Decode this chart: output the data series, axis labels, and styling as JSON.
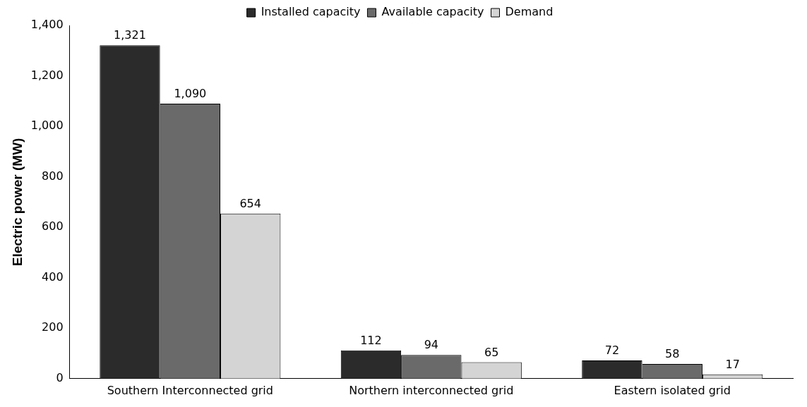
{
  "chart_data": {
    "type": "bar",
    "ylabel": "Electric power (MW)",
    "categories": [
      "Southern Interconnected grid",
      "Northern interconnected grid",
      "Eastern isolated grid"
    ],
    "series": [
      {
        "name": "Installed capacity",
        "color": "#2b2b2b",
        "values": [
          1321,
          112,
          72
        ],
        "value_labels": [
          "1,321",
          "112",
          "72"
        ]
      },
      {
        "name": "Available capacity",
        "color": "#6a6a6a",
        "values": [
          1090,
          94,
          58
        ],
        "value_labels": [
          "1,090",
          "94",
          "58"
        ]
      },
      {
        "name": "Demand",
        "color": "#d4d4d4",
        "values": [
          654,
          65,
          17
        ],
        "value_labels": [
          "654",
          "65",
          "17"
        ]
      }
    ],
    "ylim": [
      0,
      1400
    ],
    "yticks": [
      0,
      {
        "value": 200,
        "label": "200"
      },
      {
        "value": 400,
        "label": "400"
      },
      {
        "value": 600,
        "label": "600"
      },
      {
        "value": 800,
        "label": "800"
      },
      {
        "value": 1000,
        "label": "1,000"
      },
      {
        "value": 1200,
        "label": "1,200"
      },
      {
        "value": 1400,
        "label": "1,400"
      }
    ],
    "grid": false,
    "legend": "top"
  }
}
